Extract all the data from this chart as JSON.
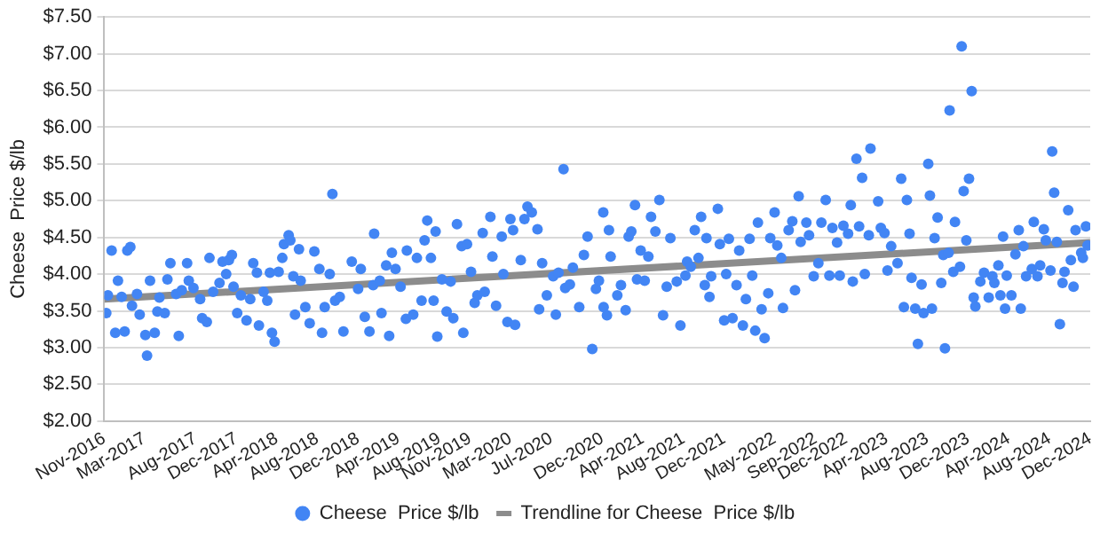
{
  "chart_data": {
    "type": "scatter",
    "ylabel": "Cheese  Price $/lb",
    "xlim": [
      "2016-11-01",
      "2024-12-01"
    ],
    "ylim": [
      2,
      7.5
    ],
    "yticks": [
      {
        "value": 2,
        "label": "$2.00"
      },
      {
        "value": 2.5,
        "label": "$2.50"
      },
      {
        "value": 3,
        "label": "$3.00"
      },
      {
        "value": 3.5,
        "label": "$3.50"
      },
      {
        "value": 4,
        "label": "$4.00"
      },
      {
        "value": 4.5,
        "label": "$4.50"
      },
      {
        "value": 5,
        "label": "$5.00"
      },
      {
        "value": 5.5,
        "label": "$5.50"
      },
      {
        "value": 6,
        "label": "$6.00"
      },
      {
        "value": 6.5,
        "label": "$6.50"
      },
      {
        "value": 7,
        "label": "$7.00"
      },
      {
        "value": 7.5,
        "label": "$7.50"
      }
    ],
    "xticks": [
      {
        "value": "2016-11",
        "label": "Nov-2016"
      },
      {
        "value": "2017-03",
        "label": "Mar-2017"
      },
      {
        "value": "2017-08",
        "label": "Aug-2017"
      },
      {
        "value": "2017-12",
        "label": "Dec-2017"
      },
      {
        "value": "2018-04",
        "label": "Apr-2018"
      },
      {
        "value": "2018-08",
        "label": "Aug-2018"
      },
      {
        "value": "2018-12",
        "label": "Dec-2018"
      },
      {
        "value": "2019-04",
        "label": "Apr-2019"
      },
      {
        "value": "2019-08",
        "label": "Aug-2019"
      },
      {
        "value": "2019-11",
        "label": "Nov-2019"
      },
      {
        "value": "2020-03",
        "label": "Mar-2020"
      },
      {
        "value": "2020-07",
        "label": "Jul-2020"
      },
      {
        "value": "2020-12",
        "label": "Dec-2020"
      },
      {
        "value": "2021-04",
        "label": "Apr-2021"
      },
      {
        "value": "2021-08",
        "label": "Aug-2021"
      },
      {
        "value": "2021-12",
        "label": "Dec-2021"
      },
      {
        "value": "2022-05",
        "label": "May-2022"
      },
      {
        "value": "2022-09",
        "label": "Sep-2022"
      },
      {
        "value": "2022-12",
        "label": "Dec-2022"
      },
      {
        "value": "2023-04",
        "label": "Apr-2023"
      },
      {
        "value": "2023-08",
        "label": "Aug-2023"
      },
      {
        "value": "2023-12",
        "label": "Dec-2023"
      },
      {
        "value": "2024-04",
        "label": "Apr-2024"
      },
      {
        "value": "2024-08",
        "label": "Aug-2024"
      },
      {
        "value": "2024-12",
        "label": "Dec-2024"
      }
    ],
    "grid": "y",
    "legend": "bottom",
    "marker": "circle",
    "series": [
      {
        "name": "Cheese  Price $/lb",
        "color": "#4285f4",
        "x": [
          "2016-11-07",
          "2016-11-12",
          "2016-11-23",
          "2016-12-04",
          "2016-12-12",
          "2016-12-23",
          "2017-01-01",
          "2017-01-09",
          "2017-01-18",
          "2017-01-23",
          "2017-02-07",
          "2017-02-15",
          "2017-03-04",
          "2017-03-09",
          "2017-03-18",
          "2017-04-01",
          "2017-04-09",
          "2017-04-15",
          "2017-05-01",
          "2017-05-09",
          "2017-05-18",
          "2017-06-04",
          "2017-06-12",
          "2017-06-21",
          "2017-07-07",
          "2017-07-12",
          "2017-07-26",
          "2017-08-15",
          "2017-08-21",
          "2017-09-04",
          "2017-09-12",
          "2017-09-23",
          "2017-10-12",
          "2017-10-21",
          "2017-11-01",
          "2017-11-09",
          "2017-11-18",
          "2017-11-23",
          "2017-12-04",
          "2017-12-15",
          "2018-01-01",
          "2018-01-12",
          "2018-01-21",
          "2018-02-01",
          "2018-02-07",
          "2018-02-21",
          "2018-03-04",
          "2018-03-12",
          "2018-03-18",
          "2018-03-26",
          "2018-04-07",
          "2018-04-18",
          "2018-04-23",
          "2018-05-07",
          "2018-05-12",
          "2018-05-21",
          "2018-05-26",
          "2018-06-07",
          "2018-06-12",
          "2018-06-26",
          "2018-07-09",
          "2018-07-23",
          "2018-08-07",
          "2018-08-15",
          "2018-08-23",
          "2018-09-07",
          "2018-09-15",
          "2018-09-23",
          "2018-10-07",
          "2018-10-18",
          "2018-11-12",
          "2018-12-01",
          "2018-12-09",
          "2018-12-21",
          "2019-01-04",
          "2019-01-15",
          "2019-01-18",
          "2019-02-04",
          "2019-02-09",
          "2019-02-23",
          "2019-03-04",
          "2019-03-12",
          "2019-03-23",
          "2019-04-07",
          "2019-04-23",
          "2019-04-26",
          "2019-05-15",
          "2019-05-26",
          "2019-06-09",
          "2019-06-18",
          "2019-06-26",
          "2019-07-07",
          "2019-07-15",
          "2019-07-21",
          "2019-07-26",
          "2019-08-09",
          "2019-08-23",
          "2019-09-04",
          "2019-09-12",
          "2019-09-23",
          "2019-10-07",
          "2019-10-12",
          "2019-10-23",
          "2019-11-04",
          "2019-11-15",
          "2019-11-23",
          "2019-12-09",
          "2019-12-15",
          "2020-01-01",
          "2020-01-07",
          "2020-01-18",
          "2020-02-04",
          "2020-02-09",
          "2020-02-21",
          "2020-03-01",
          "2020-03-09",
          "2020-03-15",
          "2020-04-01",
          "2020-04-12",
          "2020-04-21",
          "2020-05-04",
          "2020-05-21",
          "2020-05-26",
          "2020-06-04",
          "2020-06-18",
          "2020-07-07",
          "2020-07-15",
          "2020-07-23",
          "2020-08-07",
          "2020-08-12",
          "2020-08-26",
          "2020-09-04",
          "2020-09-23",
          "2020-10-07",
          "2020-10-18",
          "2020-11-01",
          "2020-11-12",
          "2020-11-21",
          "2020-12-04",
          "2020-12-15",
          "2020-12-21",
          "2020-12-05",
          "2020-12-26",
          "2021-01-15",
          "2021-01-26",
          "2021-02-09",
          "2021-02-18",
          "2021-02-26",
          "2021-03-09",
          "2021-03-15",
          "2021-03-26",
          "2021-04-07",
          "2021-04-18",
          "2021-04-26",
          "2021-05-09",
          "2021-05-21",
          "2021-06-01",
          "2021-06-12",
          "2021-06-23",
          "2021-07-12",
          "2021-07-23",
          "2021-08-07",
          "2021-08-12",
          "2021-08-23",
          "2021-09-04",
          "2021-09-15",
          "2021-09-23",
          "2021-10-04",
          "2021-10-09",
          "2021-10-18",
          "2021-10-23",
          "2021-11-12",
          "2021-11-18",
          "2021-12-01",
          "2021-12-07",
          "2021-12-15",
          "2021-12-26",
          "2022-01-07",
          "2022-01-15",
          "2022-01-26",
          "2022-02-04",
          "2022-02-15",
          "2022-02-23",
          "2022-03-04",
          "2022-03-12",
          "2022-03-23",
          "2022-04-01",
          "2022-04-12",
          "2022-04-18",
          "2022-05-01",
          "2022-05-09",
          "2022-05-21",
          "2022-05-26",
          "2022-06-12",
          "2022-06-23",
          "2022-07-01",
          "2022-07-12",
          "2022-07-18",
          "2022-08-04",
          "2022-08-12",
          "2022-08-26",
          "2022-09-09",
          "2022-09-18",
          "2022-10-01",
          "2022-10-12",
          "2022-10-21",
          "2022-11-04",
          "2022-11-12",
          "2022-11-23",
          "2022-12-07",
          "2022-12-15",
          "2022-12-21",
          "2023-01-01",
          "2023-01-09",
          "2023-01-18",
          "2023-01-26",
          "2023-02-07",
          "2023-02-12",
          "2023-03-07",
          "2023-03-15",
          "2023-03-26",
          "2023-04-04",
          "2023-04-15",
          "2023-05-04",
          "2023-05-15",
          "2023-05-23",
          "2023-06-01",
          "2023-06-09",
          "2023-06-15",
          "2023-06-26",
          "2023-07-04",
          "2023-07-15",
          "2023-07-21",
          "2023-08-04",
          "2023-08-09",
          "2023-08-15",
          "2023-08-23",
          "2023-09-01",
          "2023-09-12",
          "2023-09-18",
          "2023-09-23",
          "2023-10-04",
          "2023-10-07",
          "2023-10-18",
          "2023-10-23",
          "2023-11-07",
          "2023-11-12",
          "2023-11-18",
          "2023-11-26",
          "2023-12-04",
          "2023-12-12",
          "2023-12-18",
          "2023-12-23",
          "2024-01-07",
          "2024-01-18",
          "2024-02-01",
          "2024-02-12",
          "2024-02-18",
          "2024-03-01",
          "2024-03-07",
          "2024-03-15",
          "2024-03-21",
          "2024-03-26",
          "2024-04-09",
          "2024-04-21",
          "2024-05-01",
          "2024-05-07",
          "2024-05-15",
          "2024-05-23",
          "2024-06-09",
          "2024-06-15",
          "2024-06-26",
          "2024-07-04",
          "2024-07-15",
          "2024-07-21",
          "2024-08-04",
          "2024-08-09",
          "2024-08-15",
          "2024-08-23",
          "2024-09-01",
          "2024-09-09",
          "2024-09-15",
          "2024-09-26",
          "2024-10-04",
          "2024-10-12",
          "2024-10-18",
          "2024-11-04",
          "2024-11-09",
          "2024-11-18",
          "2024-11-23"
        ],
        "values": [
          3.47,
          3.71,
          4.32,
          3.2,
          3.91,
          3.69,
          3.22,
          4.32,
          4.37,
          3.57,
          3.73,
          3.45,
          3.17,
          2.89,
          3.91,
          3.2,
          3.49,
          3.68,
          3.47,
          3.93,
          4.15,
          3.73,
          3.16,
          3.78,
          4.15,
          3.91,
          3.81,
          3.66,
          3.4,
          3.35,
          4.22,
          3.76,
          3.88,
          4.17,
          4.0,
          4.19,
          4.26,
          3.83,
          3.47,
          3.71,
          3.37,
          3.66,
          4.15,
          4.02,
          3.3,
          3.76,
          3.64,
          4.02,
          3.2,
          3.08,
          4.03,
          4.22,
          4.41,
          4.53,
          4.46,
          3.97,
          3.45,
          4.34,
          3.91,
          3.55,
          3.33,
          4.31,
          4.07,
          3.2,
          3.55,
          4.0,
          5.09,
          3.64,
          3.69,
          3.22,
          4.17,
          3.8,
          4.07,
          3.42,
          3.22,
          3.85,
          4.55,
          3.91,
          3.47,
          4.12,
          3.16,
          4.29,
          4.07,
          3.83,
          3.39,
          4.32,
          3.45,
          4.22,
          3.64,
          4.46,
          4.73,
          4.22,
          3.64,
          4.58,
          3.15,
          3.93,
          3.49,
          3.9,
          3.4,
          4.68,
          4.38,
          3.2,
          4.41,
          4.03,
          3.61,
          3.71,
          4.56,
          3.76,
          4.78,
          4.24,
          3.57,
          4.51,
          4.0,
          3.35,
          4.75,
          4.6,
          3.31,
          4.19,
          4.75,
          4.92,
          4.84,
          4.61,
          3.52,
          4.15,
          3.71,
          3.97,
          3.45,
          4.02,
          5.43,
          3.81,
          3.86,
          4.09,
          3.55,
          4.26,
          4.51,
          2.98,
          3.8,
          3.91,
          4.84,
          3.44,
          4.6,
          3.55,
          4.24,
          3.71,
          3.85,
          3.51,
          4.51,
          4.58,
          4.94,
          3.93,
          4.32,
          3.91,
          4.24,
          4.78,
          4.58,
          5.01,
          3.44,
          3.83,
          4.49,
          3.9,
          3.3,
          3.98,
          4.17,
          4.1,
          4.6,
          4.22,
          4.78,
          3.85,
          4.49,
          3.69,
          3.97,
          4.89,
          4.41,
          3.37,
          4.0,
          4.48,
          3.4,
          3.85,
          4.32,
          3.3,
          3.66,
          4.48,
          3.98,
          3.23,
          4.7,
          3.52,
          3.13,
          3.74,
          4.49,
          4.84,
          4.39,
          4.22,
          3.54,
          4.6,
          4.72,
          3.78,
          5.06,
          4.44,
          4.7,
          4.53,
          3.97,
          4.15,
          4.7,
          5.01,
          3.98,
          4.63,
          4.43,
          3.98,
          4.66,
          4.55,
          4.94,
          3.9,
          5.57,
          4.65,
          5.31,
          4.0,
          4.53,
          5.71,
          4.99,
          4.63,
          4.56,
          4.05,
          4.38,
          4.15,
          5.3,
          3.55,
          5.01,
          4.55,
          3.95,
          3.53,
          3.05,
          3.86,
          3.47,
          5.5,
          5.07,
          3.53,
          4.49,
          4.77,
          3.88,
          4.26,
          2.99,
          4.29,
          6.23,
          4.03,
          4.71,
          4.1,
          7.1,
          5.13,
          4.46,
          5.3,
          6.49,
          3.68,
          3.56,
          3.9,
          4.02,
          3.68,
          3.97,
          3.88,
          4.12,
          3.71,
          4.51,
          3.53,
          3.98,
          3.71,
          4.27,
          4.6,
          3.53,
          4.38,
          3.97,
          4.07,
          4.71,
          3.97,
          4.12,
          4.61,
          4.46,
          4.05,
          5.67,
          5.11,
          4.44,
          3.32,
          3.88,
          4.03,
          4.87,
          4.19,
          3.83,
          4.6,
          4.29,
          4.22,
          4.65,
          4.39
        ]
      },
      {
        "name": "Trendline for Cheese  Price $/lb",
        "type": "line",
        "color": "#8c8c8c",
        "marker": "none",
        "x": [
          "2016-11-01",
          "2024-12-01"
        ],
        "values": [
          3.66,
          4.43
        ]
      }
    ]
  }
}
